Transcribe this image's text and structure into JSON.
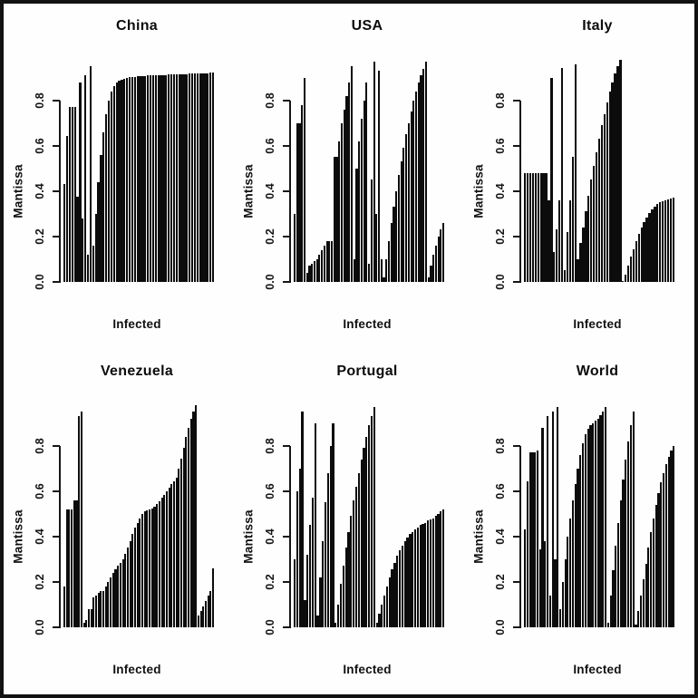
{
  "figure": {
    "background_color": "#ffffff",
    "border_color": "#121212",
    "bar_color": "#0c0c0c",
    "layout": "2 rows x 3 columns of bar plots",
    "panel_titles": [
      "China",
      "USA",
      "Italy",
      "Venezuela",
      "Portugal",
      "World"
    ]
  },
  "chart_data": [
    {
      "type": "bar",
      "title": "China",
      "xlabel": "Infected",
      "ylabel": "Mantissa",
      "ylim": [
        0,
        1
      ],
      "yticks": [
        "0.0",
        "0.2",
        "0.4",
        "0.6",
        "0.8"
      ],
      "grid": false,
      "legend": "none",
      "values": [
        0.43,
        0.645,
        0.77,
        0.77,
        0.77,
        0.375,
        0.88,
        0.28,
        0.91,
        0.12,
        0.95,
        0.16,
        0.3,
        0.44,
        0.56,
        0.66,
        0.74,
        0.8,
        0.84,
        0.865,
        0.88,
        0.888,
        0.893,
        0.897,
        0.9,
        0.902,
        0.904,
        0.905,
        0.906,
        0.907,
        0.908,
        0.909,
        0.91,
        0.91,
        0.911,
        0.911,
        0.912,
        0.912,
        0.913,
        0.913,
        0.914,
        0.914,
        0.915,
        0.915,
        0.916,
        0.916,
        0.917,
        0.917,
        0.918,
        0.918,
        0.919,
        0.919,
        0.92,
        0.92,
        0.921,
        0.921,
        0.922,
        0.922
      ]
    },
    {
      "type": "bar",
      "title": "USA",
      "xlabel": "Infected",
      "ylabel": "Mantissa",
      "ylim": [
        0,
        1
      ],
      "yticks": [
        "0.0",
        "0.2",
        "0.4",
        "0.6",
        "0.8"
      ],
      "grid": false,
      "legend": "none",
      "values": [
        0.3,
        0.7,
        0.7,
        0.78,
        0.9,
        0.04,
        0.07,
        0.08,
        0.09,
        0.1,
        0.12,
        0.14,
        0.16,
        0.18,
        0.18,
        0.18,
        0.55,
        0.55,
        0.62,
        0.7,
        0.76,
        0.82,
        0.88,
        0.95,
        0.1,
        0.5,
        0.62,
        0.72,
        0.8,
        0.88,
        0.08,
        0.45,
        0.97,
        0.3,
        0.93,
        0.1,
        0.02,
        0.1,
        0.18,
        0.26,
        0.33,
        0.4,
        0.47,
        0.53,
        0.59,
        0.65,
        0.7,
        0.75,
        0.8,
        0.84,
        0.88,
        0.91,
        0.94,
        0.97,
        0.02,
        0.07,
        0.12,
        0.16,
        0.2,
        0.23,
        0.26
      ]
    },
    {
      "type": "bar",
      "title": "Italy",
      "xlabel": "Infected",
      "ylabel": "Mantissa",
      "ylim": [
        0,
        1
      ],
      "yticks": [
        "0.0",
        "0.2",
        "0.4",
        "0.6",
        "0.8"
      ],
      "grid": false,
      "legend": "none",
      "values": [
        0.48,
        0.48,
        0.48,
        0.48,
        0.48,
        0.48,
        0.48,
        0.48,
        0.48,
        0.36,
        0.9,
        0.13,
        0.23,
        0.36,
        0.945,
        0.05,
        0.22,
        0.36,
        0.55,
        0.96,
        0.1,
        0.17,
        0.24,
        0.31,
        0.38,
        0.45,
        0.51,
        0.57,
        0.63,
        0.69,
        0.74,
        0.79,
        0.84,
        0.88,
        0.92,
        0.95,
        0.98,
        0.005,
        0.03,
        0.07,
        0.11,
        0.145,
        0.18,
        0.21,
        0.24,
        0.265,
        0.285,
        0.305,
        0.32,
        0.332,
        0.342,
        0.35,
        0.356,
        0.361,
        0.365,
        0.368,
        0.37
      ]
    },
    {
      "type": "bar",
      "title": "Venezuela",
      "xlabel": "Infected",
      "ylabel": "Mantissa",
      "ylim": [
        0,
        1
      ],
      "yticks": [
        "0.0",
        "0.2",
        "0.4",
        "0.6",
        "0.8"
      ],
      "grid": false,
      "legend": "none",
      "values": [
        0.18,
        0.52,
        0.52,
        0.52,
        0.56,
        0.56,
        0.93,
        0.95,
        0.02,
        0.03,
        0.08,
        0.08,
        0.13,
        0.14,
        0.15,
        0.16,
        0.16,
        0.18,
        0.2,
        0.22,
        0.24,
        0.255,
        0.27,
        0.285,
        0.3,
        0.325,
        0.35,
        0.38,
        0.41,
        0.44,
        0.46,
        0.48,
        0.5,
        0.51,
        0.515,
        0.52,
        0.525,
        0.53,
        0.545,
        0.555,
        0.57,
        0.585,
        0.6,
        0.615,
        0.63,
        0.645,
        0.66,
        0.7,
        0.745,
        0.79,
        0.84,
        0.88,
        0.92,
        0.95,
        0.98,
        0.05,
        0.07,
        0.09,
        0.115,
        0.14,
        0.16,
        0.26
      ]
    },
    {
      "type": "bar",
      "title": "Portugal",
      "xlabel": "Infected",
      "ylabel": "Mantissa",
      "ylim": [
        0,
        1
      ],
      "yticks": [
        "0.0",
        "0.2",
        "0.4",
        "0.6",
        "0.8"
      ],
      "grid": false,
      "legend": "none",
      "values": [
        0.3,
        0.6,
        0.7,
        0.95,
        0.12,
        0.32,
        0.45,
        0.57,
        0.9,
        0.05,
        0.22,
        0.38,
        0.55,
        0.68,
        0.8,
        0.9,
        0.02,
        0.1,
        0.19,
        0.27,
        0.35,
        0.42,
        0.49,
        0.56,
        0.62,
        0.68,
        0.74,
        0.79,
        0.84,
        0.89,
        0.93,
        0.97,
        0.02,
        0.06,
        0.1,
        0.14,
        0.18,
        0.22,
        0.255,
        0.285,
        0.315,
        0.34,
        0.36,
        0.38,
        0.395,
        0.41,
        0.42,
        0.43,
        0.44,
        0.45,
        0.455,
        0.46,
        0.47,
        0.475,
        0.48,
        0.49,
        0.5,
        0.51,
        0.52
      ]
    },
    {
      "type": "bar",
      "title": "World",
      "xlabel": "Infected",
      "ylabel": "Mantissa",
      "ylim": [
        0,
        1
      ],
      "yticks": [
        "0.0",
        "0.2",
        "0.4",
        "0.6",
        "0.8"
      ],
      "grid": false,
      "legend": "none",
      "values": [
        0.43,
        0.645,
        0.77,
        0.77,
        0.77,
        0.78,
        0.345,
        0.88,
        0.38,
        0.93,
        0.14,
        0.95,
        0.3,
        0.97,
        0.08,
        0.2,
        0.3,
        0.4,
        0.48,
        0.56,
        0.63,
        0.7,
        0.76,
        0.81,
        0.85,
        0.875,
        0.89,
        0.9,
        0.91,
        0.92,
        0.935,
        0.95,
        0.97,
        0.02,
        0.14,
        0.25,
        0.36,
        0.46,
        0.56,
        0.65,
        0.74,
        0.82,
        0.89,
        0.95,
        0.01,
        0.07,
        0.14,
        0.21,
        0.28,
        0.35,
        0.42,
        0.48,
        0.54,
        0.59,
        0.64,
        0.68,
        0.72,
        0.75,
        0.78,
        0.8
      ]
    }
  ]
}
